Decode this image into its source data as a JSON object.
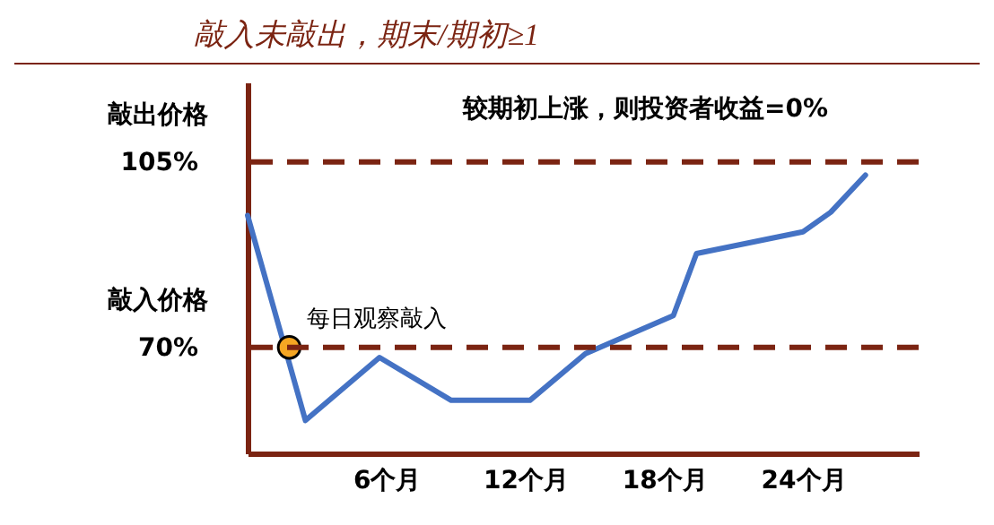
{
  "chart_data": {
    "type": "line",
    "title": "敲入未敲出，期末/期初≥1",
    "annotations": [
      "较期初上涨，则投资者收益=0%",
      {
        "text": "每日观察敲入",
        "x": 1.8,
        "y": 70
      }
    ],
    "xlim": [
      0,
      29
    ],
    "xticks": [
      {
        "value": 6,
        "label": "6个月"
      },
      {
        "value": 12,
        "label": "12个月"
      },
      {
        "value": 18,
        "label": "18个月"
      },
      {
        "value": 24,
        "label": "24个月"
      }
    ],
    "ylim": [
      50,
      120
    ],
    "yticks": [
      {
        "value": 105,
        "label": "105%"
      },
      {
        "value": 70,
        "label": "70%"
      }
    ],
    "ref_lines": [
      {
        "axis": "y",
        "value": 105,
        "label": "敲出价格",
        "color": "#7b2412",
        "line_style": "dashed"
      },
      {
        "axis": "y",
        "value": 70,
        "label": "敲入价格",
        "color": "#7b2412",
        "line_style": "dashed"
      }
    ],
    "series": [
      {
        "color": "#4472c4",
        "x": [
          0,
          2.5,
          5.7,
          8.8,
          12.2,
          14.6,
          18.4,
          19.4,
          24,
          25.2,
          26.7
        ],
        "values": [
          94.9,
          56.2,
          68.1,
          60,
          60,
          68.8,
          76,
          87.7,
          91.8,
          95.5,
          102.5
        ]
      },
      {
        "type": "scatter",
        "color": "#f5a623",
        "marker": "circle",
        "x": [
          1.8
        ],
        "values": [
          70
        ]
      }
    ]
  }
}
